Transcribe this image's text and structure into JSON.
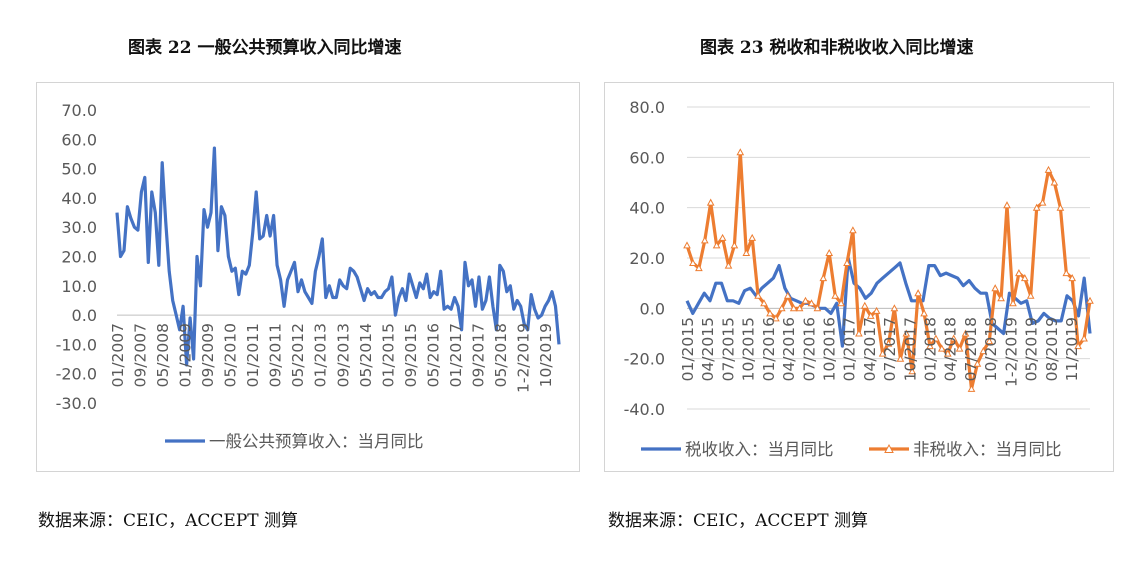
{
  "figures": [
    {
      "title": "图表 22  一般公共预算收入同比增速",
      "source": "数据来源：CEIC，ACCEPT 测算"
    },
    {
      "title": "图表 23  税收和非税收收入同比增速",
      "source": "数据来源：CEIC，ACCEPT 测算"
    }
  ],
  "chart_data": [
    {
      "type": "line",
      "title": "",
      "ylim": [
        -30,
        70
      ],
      "yticks": [
        "70.0",
        "60.0",
        "50.0",
        "40.0",
        "30.0",
        "20.0",
        "10.0",
        "0.0",
        "-10.0",
        "-20.0",
        "-30.0"
      ],
      "xticks": [
        "01/2007",
        "09/2007",
        "05/2008",
        "01/2009",
        "09/2009",
        "05/2010",
        "01/2011",
        "09/2011",
        "05/2012",
        "01/2013",
        "09/2013",
        "05/2014",
        "01/2015",
        "09/2015",
        "05/2016",
        "01/2017",
        "09/2017",
        "05/2018",
        "1-2/2019",
        "10/2019"
      ],
      "legend_position": "bottom",
      "colors": {
        "series": "#4472C4"
      },
      "series": [
        {
          "name": "一般公共预算收入：当月同比",
          "values": [
            35,
            20,
            22,
            37,
            33,
            30,
            29,
            42,
            47,
            18,
            42,
            35,
            17,
            52,
            32,
            15,
            5,
            0,
            -5,
            3,
            -17,
            -1,
            -15,
            20,
            10,
            36,
            30,
            35,
            57,
            22,
            37,
            34,
            20,
            15,
            16,
            7,
            15,
            14,
            17,
            28,
            42,
            26,
            27,
            34,
            27,
            34,
            17,
            12,
            3,
            12,
            15,
            18,
            8,
            12,
            8,
            6,
            4,
            15,
            20,
            26,
            6,
            10,
            6,
            6,
            12,
            10,
            9,
            16,
            15,
            13,
            9,
            5,
            9,
            7,
            8,
            6,
            6,
            8,
            9,
            13,
            0,
            6,
            9,
            5,
            14,
            10,
            6,
            11,
            9,
            14,
            6,
            8,
            7,
            15,
            2,
            3,
            2,
            6,
            3,
            -5,
            18,
            10,
            12,
            3,
            13,
            2,
            5,
            13,
            3,
            -5,
            17,
            15,
            8,
            10,
            2,
            5,
            3,
            -3,
            -5,
            7,
            2,
            -1,
            0,
            3,
            5,
            8,
            3,
            -10
          ]
        }
      ]
    },
    {
      "type": "line",
      "title": "",
      "ylim": [
        -40,
        80
      ],
      "yticks": [
        "80.0",
        "60.0",
        "40.0",
        "20.0",
        "0.0",
        "-20.0",
        "-40.0"
      ],
      "xticks": [
        "01/2015",
        "04/2015",
        "07/2015",
        "10/2015",
        "01/2016",
        "04/2016",
        "07/2016",
        "10/2016",
        "01/2017",
        "04/2017",
        "07/2017",
        "10/2017",
        "01/2018",
        "04/2018",
        "07/2018",
        "10/2018",
        "1-2/2019",
        "05/2019",
        "08/2019",
        "11/2019"
      ],
      "legend_position": "bottom",
      "colors": {
        "tax": "#4472C4",
        "nontax": "#ED7D31"
      },
      "series": [
        {
          "name": "税收收入：当月同比",
          "values": [
            3,
            -2,
            2,
            6,
            3,
            10,
            10,
            3,
            3,
            2,
            7,
            8,
            5,
            8,
            10,
            12,
            17,
            8,
            4,
            3,
            2,
            2,
            1,
            0,
            0,
            -2,
            2,
            -15,
            20,
            10,
            8,
            4,
            6,
            10,
            12,
            14,
            16,
            18,
            10,
            3,
            3,
            3,
            17,
            17,
            13,
            14,
            13,
            12,
            9,
            11,
            8,
            6,
            6,
            -6,
            -8,
            -10,
            6,
            4,
            2,
            3,
            -6,
            -5,
            -2,
            -4,
            -5,
            -5,
            5,
            3,
            -3,
            12,
            -10
          ]
        },
        {
          "name": "非税收入：当月同比",
          "values": [
            25,
            18,
            16,
            27,
            42,
            25,
            28,
            17,
            25,
            62,
            22,
            28,
            5,
            2,
            -2,
            -4,
            0,
            5,
            0,
            0,
            3,
            2,
            0,
            12,
            22,
            5,
            2,
            18,
            31,
            -10,
            1,
            -3,
            -1,
            -18,
            -14,
            0,
            -20,
            -10,
            -25,
            6,
            -2,
            -15,
            -12,
            -16,
            -18,
            -12,
            -16,
            -10,
            -32,
            -22,
            -17,
            -13,
            8,
            4,
            41,
            2,
            14,
            12,
            5,
            40,
            42,
            55,
            50,
            40,
            14,
            12,
            -15,
            -12,
            3
          ]
        }
      ]
    }
  ]
}
